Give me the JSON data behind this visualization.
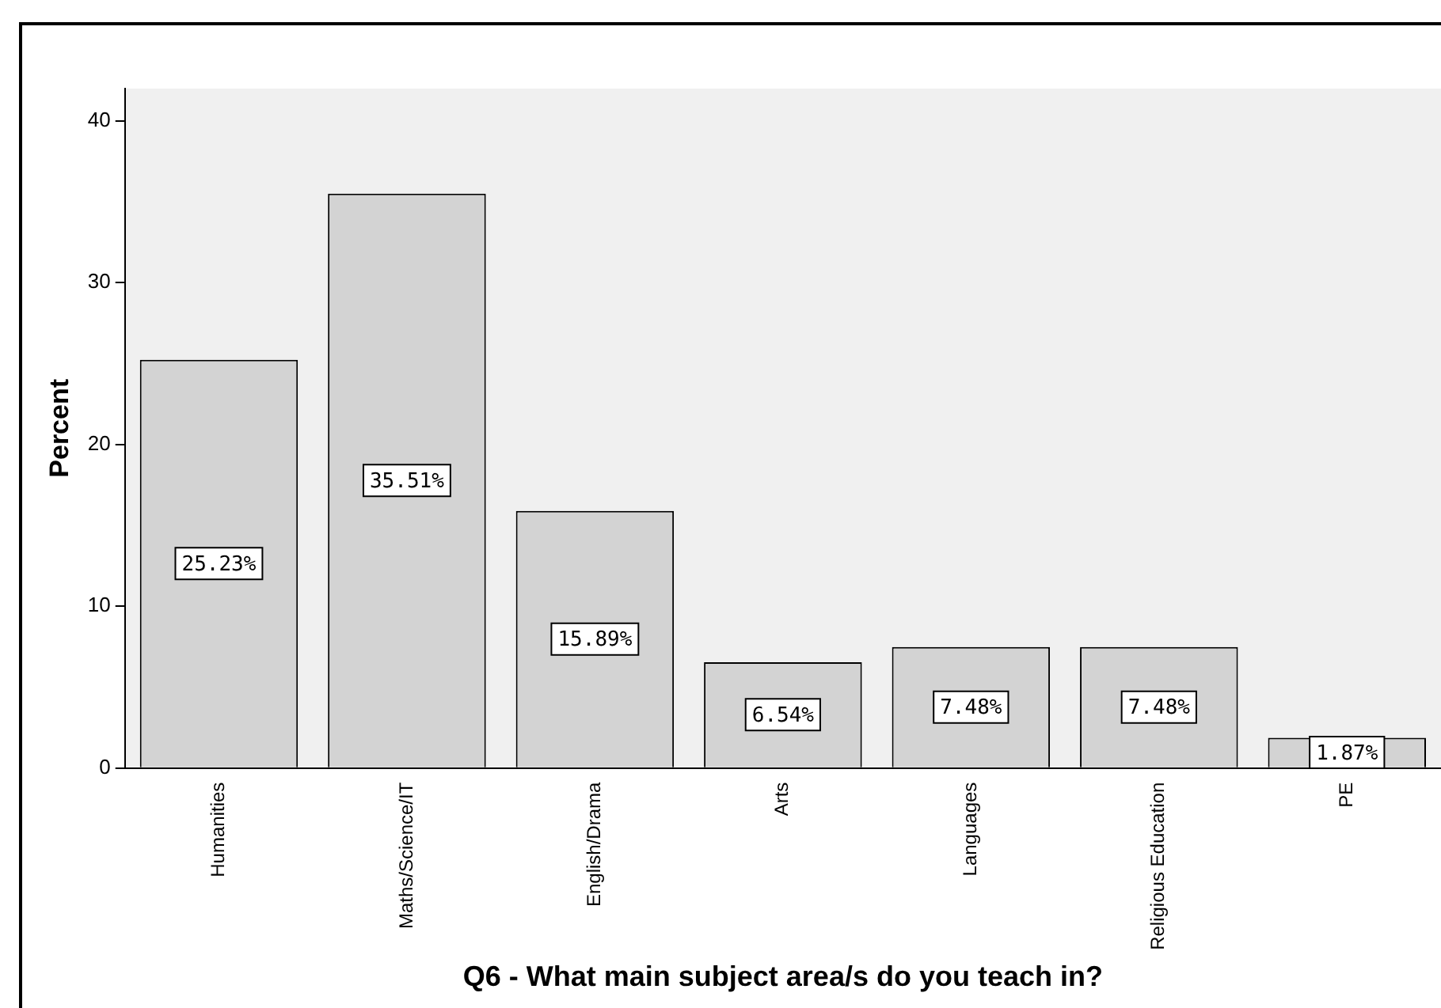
{
  "chart_data": {
    "type": "bar",
    "xlabel": "Q6 - What main subject area/s do you teach in?",
    "ylabel": "Percent",
    "categories": [
      "Humanities",
      "Maths/Science/IT",
      "English/Drama",
      "Arts",
      "Languages",
      "Religious Education",
      "PE"
    ],
    "values": [
      25.23,
      35.51,
      15.89,
      6.54,
      7.48,
      7.48,
      1.87
    ],
    "value_labels": [
      "25.23%",
      "35.51%",
      "15.89%",
      "6.54%",
      "7.48%",
      "7.48%",
      "1.87%"
    ],
    "color": "#d3d3d3",
    "ylim": [
      0,
      42
    ],
    "yticks": [
      0,
      10,
      20,
      30,
      40
    ],
    "grid": false,
    "legend": false
  }
}
